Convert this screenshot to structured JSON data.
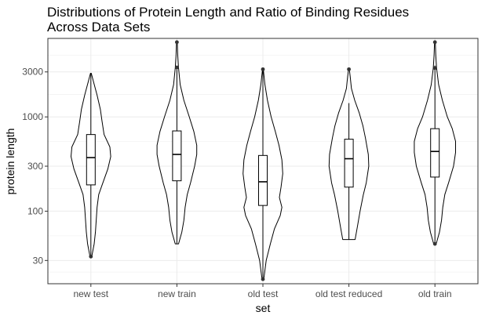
{
  "chart_data": {
    "type": "violin",
    "title_lines": [
      "Distributions of Protein Length and Ratio of Binding Residues",
      "Across Data Sets"
    ],
    "xlabel": "set",
    "ylabel": "protein length",
    "y_scale": "log10",
    "ylim": [
      17,
      6800
    ],
    "y_ticks": [
      30,
      100,
      300,
      1000,
      3000
    ],
    "y_tick_labels": [
      "30",
      "100",
      "300",
      "1000",
      "3000"
    ],
    "grid": true,
    "categories": [
      "new test",
      "new train",
      "old test",
      "old test reduced",
      "old train"
    ],
    "series": [
      {
        "category": "new test",
        "box": {
          "q1": 190,
          "median": 370,
          "q3": 650,
          "whisker_low": 33,
          "whisker_high": 2900
        },
        "outliers": [
          33
        ],
        "density_profile": [
          [
            33,
            0.02
          ],
          [
            45,
            0.08
          ],
          [
            60,
            0.11
          ],
          [
            80,
            0.13
          ],
          [
            110,
            0.15
          ],
          [
            150,
            0.19
          ],
          [
            200,
            0.29
          ],
          [
            280,
            0.41
          ],
          [
            380,
            0.48
          ],
          [
            480,
            0.46
          ],
          [
            650,
            0.32
          ],
          [
            900,
            0.27
          ],
          [
            1200,
            0.23
          ],
          [
            1700,
            0.15
          ],
          [
            2300,
            0.07
          ],
          [
            2900,
            0.01
          ]
        ]
      },
      {
        "category": "new train",
        "box": {
          "q1": 210,
          "median": 400,
          "q3": 710,
          "whisker_low": 45,
          "whisker_high": 3350
        },
        "outliers": [
          6200,
          3350
        ],
        "density_profile": [
          [
            45,
            0.04
          ],
          [
            60,
            0.12
          ],
          [
            80,
            0.17
          ],
          [
            110,
            0.2
          ],
          [
            150,
            0.25
          ],
          [
            200,
            0.33
          ],
          [
            300,
            0.43
          ],
          [
            400,
            0.48
          ],
          [
            500,
            0.48
          ],
          [
            700,
            0.41
          ],
          [
            1000,
            0.3
          ],
          [
            1500,
            0.17
          ],
          [
            2200,
            0.08
          ],
          [
            3300,
            0.04
          ],
          [
            4500,
            0.02
          ],
          [
            6200,
            0.01
          ]
        ]
      },
      {
        "category": "old test",
        "box": {
          "q1": 115,
          "median": 205,
          "q3": 390,
          "whisker_low": 19,
          "whisker_high": 3200
        },
        "outliers": [
          3200,
          19
        ],
        "density_profile": [
          [
            19,
            0.02
          ],
          [
            30,
            0.08
          ],
          [
            45,
            0.18
          ],
          [
            65,
            0.28
          ],
          [
            90,
            0.42
          ],
          [
            110,
            0.46
          ],
          [
            140,
            0.4
          ],
          [
            180,
            0.44
          ],
          [
            250,
            0.48
          ],
          [
            350,
            0.46
          ],
          [
            500,
            0.39
          ],
          [
            700,
            0.3
          ],
          [
            1000,
            0.2
          ],
          [
            1500,
            0.11
          ],
          [
            2200,
            0.05
          ],
          [
            3200,
            0.01
          ]
        ]
      },
      {
        "category": "old test reduced",
        "box": {
          "q1": 180,
          "median": 360,
          "q3": 580,
          "whisker_low": 50,
          "whisker_high": 1400
        },
        "outliers": [
          3200
        ],
        "density_profile": [
          [
            50,
            0.15
          ],
          [
            70,
            0.21
          ],
          [
            100,
            0.27
          ],
          [
            150,
            0.35
          ],
          [
            200,
            0.42
          ],
          [
            300,
            0.48
          ],
          [
            400,
            0.47
          ],
          [
            600,
            0.4
          ],
          [
            800,
            0.34
          ],
          [
            1100,
            0.25
          ],
          [
            1500,
            0.14
          ],
          [
            2000,
            0.06
          ],
          [
            2700,
            0.03
          ],
          [
            3200,
            0.01
          ]
        ]
      },
      {
        "category": "old train",
        "box": {
          "q1": 230,
          "median": 430,
          "q3": 750,
          "whisker_low": 45,
          "whisker_high": 3500
        },
        "outliers": [
          6200,
          3300,
          45
        ],
        "density_profile": [
          [
            45,
            0.03
          ],
          [
            60,
            0.11
          ],
          [
            80,
            0.16
          ],
          [
            110,
            0.19
          ],
          [
            150,
            0.24
          ],
          [
            200,
            0.33
          ],
          [
            300,
            0.45
          ],
          [
            420,
            0.5
          ],
          [
            550,
            0.5
          ],
          [
            750,
            0.42
          ],
          [
            1000,
            0.3
          ],
          [
            1500,
            0.18
          ],
          [
            2200,
            0.09
          ],
          [
            3300,
            0.04
          ],
          [
            4500,
            0.02
          ],
          [
            6200,
            0.01
          ]
        ]
      }
    ],
    "colors": {
      "outline": "#000000",
      "grid": "#ebebeb",
      "panel_border": "#333333",
      "tick_text": "#4d4d4d",
      "outlier": "#333333"
    }
  }
}
